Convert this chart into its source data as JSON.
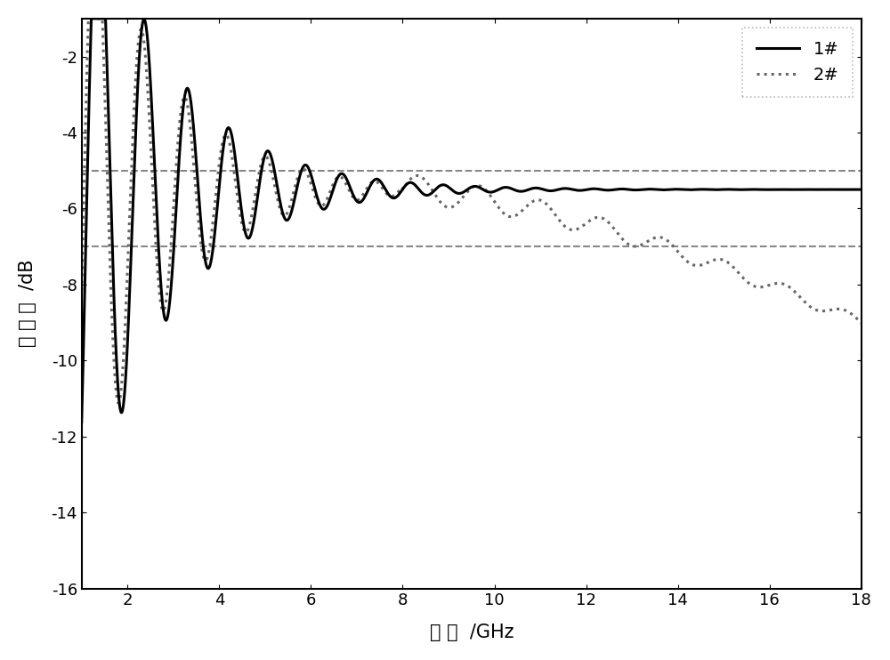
{
  "title": "",
  "xlabel": "频 率  /GHz",
  "ylabel": "反 射 率  /dB",
  "xlim": [
    1,
    18
  ],
  "ylim": [
    -16,
    -1
  ],
  "yticks": [
    -16,
    -14,
    -12,
    -10,
    -8,
    -6,
    -4,
    -2
  ],
  "xticks": [
    2,
    4,
    6,
    8,
    10,
    12,
    14,
    16,
    18
  ],
  "hline1_y": -5.0,
  "hline2_y": -7.0,
  "line1_color": "#000000",
  "line2_color": "#666666",
  "hline_color": "#888888",
  "background_color": "#ffffff",
  "legend_labels": [
    "1#",
    "2#"
  ],
  "legend_fontsize": 14,
  "axis_fontsize": 15,
  "tick_fontsize": 13
}
